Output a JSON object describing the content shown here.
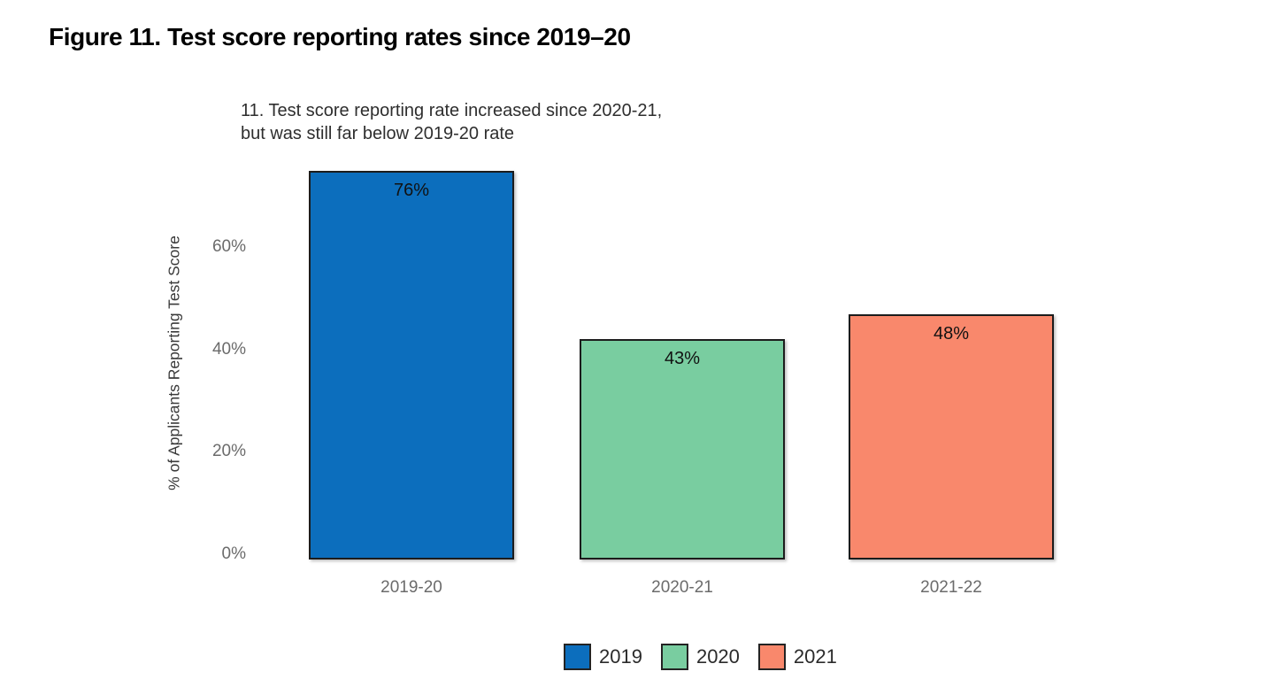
{
  "page": {
    "heading": "Figure 11. Test score reporting rates since 2019–20"
  },
  "chart_data": {
    "type": "bar",
    "title": "11. Test score reporting rate increased since 2020-21,\nbut was still far below 2019-20 rate",
    "categories": [
      "2019-20",
      "2020-21",
      "2021-22"
    ],
    "values": [
      76,
      43,
      48
    ],
    "value_labels": [
      "76%",
      "43%",
      "48%"
    ],
    "xlabel": "",
    "ylabel": "% of Applicants Reporting Test Score",
    "yticks": [
      {
        "value": 0,
        "label": "0%"
      },
      {
        "value": 20,
        "label": "20%"
      },
      {
        "value": 40,
        "label": "40%"
      },
      {
        "value": 60,
        "label": "60%"
      }
    ],
    "ylim": [
      0,
      77
    ],
    "grid": false,
    "bar_colors": [
      "#0c6ebd",
      "#79cda0",
      "#f9886c"
    ],
    "bar_border_color": "#1c1c1c",
    "legend": {
      "position": "bottom",
      "entries": [
        {
          "label": "2019",
          "color": "#0c6ebd"
        },
        {
          "label": "2020",
          "color": "#79cda0"
        },
        {
          "label": "2021",
          "color": "#f9886c"
        }
      ]
    }
  }
}
